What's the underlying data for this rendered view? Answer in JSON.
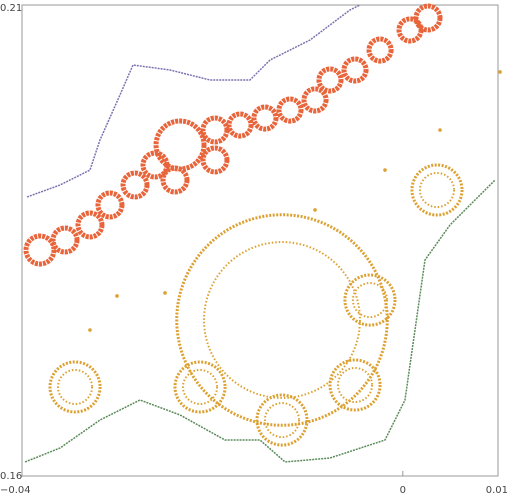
{
  "chart_data": {
    "type": "scatter",
    "xlim": [
      -0.04,
      0.01
    ],
    "ylim": [
      0.16,
      0.21
    ],
    "xticks": [
      {
        "value": -0.04,
        "label": "−0.04"
      },
      0,
      0.01
    ],
    "yticks": [
      0.16,
      0.21
    ],
    "series": [
      {
        "mode": "line",
        "color": "#7b72b0",
        "x": [
          -0.03947,
          -0.03601,
          -0.03286,
          -0.03181,
          -0.02971,
          -0.02834,
          -0.02445,
          -0.02025,
          -0.01605,
          -0.01395,
          -0.00975,
          -0.00555,
          -0.0045
        ],
        "y": [
          0.18962,
          0.19089,
          0.19248,
          0.19567,
          0.20045,
          0.20363,
          0.2031,
          0.20204,
          0.20204,
          0.20416,
          0.20628,
          0.20947,
          0.21
        ]
      },
      {
        "mode": "ring",
        "color": "#e8643a",
        "x": [
          -0.03811,
          -0.03548,
          -0.03286,
          -0.03076,
          -0.02813,
          -0.02603,
          -0.0234,
          -0.02393,
          -0.01973,
          -0.01973,
          -0.0171,
          -0.01448,
          -0.01185,
          -0.00922,
          -0.00765,
          -0.00502,
          -0.00239,
          0.00076,
          0.00265
        ],
        "y": [
          0.18399,
          0.18505,
          0.18665,
          0.18877,
          0.19089,
          0.19301,
          0.19514,
          0.19142,
          0.19355,
          0.19673,
          0.19726,
          0.198,
          0.19885,
          0.19992,
          0.20204,
          0.2031,
          0.20522,
          0.20735,
          0.20862
        ],
        "r": [
          0.00126,
          0.00105,
          0.00105,
          0.00105,
          0.00105,
          0.00105,
          0.00231,
          0.00105,
          0.00105,
          0.00105,
          0.00095,
          0.00095,
          0.00095,
          0.00095,
          0.00095,
          0.00095,
          0.00095,
          0.00095,
          0.00105
        ]
      },
      {
        "mode": "halo",
        "color": "#dca132",
        "x": [
          -0.01269,
          -0.03443,
          -0.0213,
          -0.01269,
          -0.00502,
          -0.00345,
          0.00359
        ],
        "y": [
          0.17656,
          0.16945,
          0.16945,
          0.16594,
          0.16966,
          0.17868,
          0.19036
        ],
        "r": [
          0.00819,
          0.00179,
          0.00179,
          0.00179,
          0.00179,
          0.00179,
          0.00179
        ]
      },
      {
        "mode": "point",
        "color": "#dca132",
        "x": [
          0.01021,
          0.00391,
          -0.00187,
          -0.00922,
          -0.03002,
          -0.02498,
          -0.03286
        ],
        "y": [
          0.20289,
          0.19673,
          0.19248,
          0.18824,
          0.17911,
          0.17943,
          0.1755
        ]
      },
      {
        "mode": "line",
        "color": "#5a8a5a",
        "x": [
          -0.03968,
          -0.03601,
          -0.03181,
          -0.02761,
          -0.0234,
          -0.01868,
          -0.015,
          -0.01237,
          -0.00765,
          -0.00187,
          0.00023,
          0.00128,
          0.00233,
          0.00496,
          0.00969
        ],
        "y": [
          0.16149,
          0.16297,
          0.16594,
          0.16807,
          0.16648,
          0.16382,
          0.16382,
          0.16149,
          0.16191,
          0.16382,
          0.16807,
          0.1755,
          0.18293,
          0.18665,
          0.19142
        ]
      }
    ]
  }
}
